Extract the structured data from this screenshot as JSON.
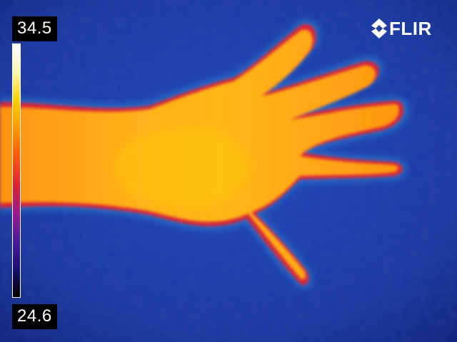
{
  "thermal_image": {
    "subject": "hand",
    "palette": [
      "#000000",
      "#1a1070",
      "#4a1a9a",
      "#9a1a8a",
      "#d8203a",
      "#ff5a10",
      "#ff9a00",
      "#ffd000",
      "#fff8b0",
      "#ffffff"
    ],
    "background_color": "#1a3aa8",
    "hand_color": "#ffa010"
  },
  "scale": {
    "max_label": "34.5",
    "min_label": "24.6"
  },
  "brand": {
    "name": "FLIR",
    "color": "#ffffff"
  }
}
